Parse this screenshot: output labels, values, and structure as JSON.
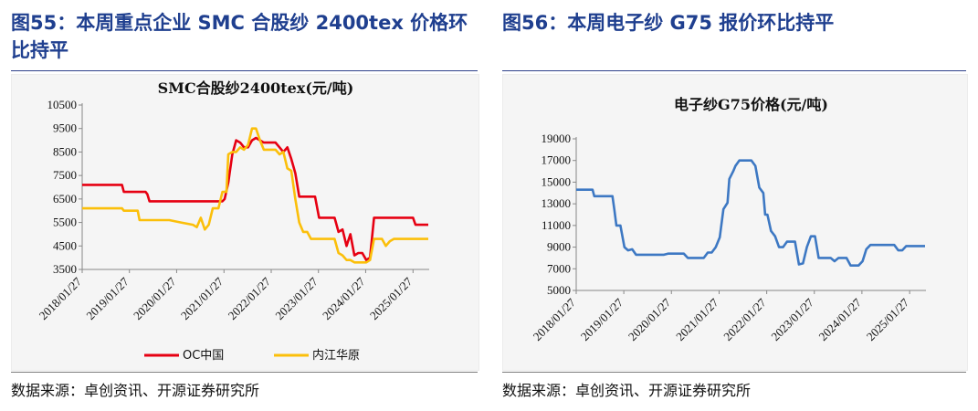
{
  "left_panel": {
    "figure_title": "图55：本周重点企业 SMC 合股纱 2400tex 价格环比持平",
    "source": "数据来源：卓创资讯、开源证券研究所"
  },
  "right_panel": {
    "figure_title": "图56：本周电子纱 G75 报价环比持平",
    "source": "数据来源：卓创资讯、开源证券研究所"
  },
  "colors": {
    "title": "#1f3f8f",
    "oc": "#e60012",
    "neijiang": "#fbbf0a",
    "g75": "#3d78c3",
    "panel_bg": "#f5f5f5"
  },
  "chart_data": [
    {
      "type": "line",
      "title": "SMC合股纱2400tex(元/吨)",
      "xlabel": "",
      "ylabel": "",
      "x_ticks": [
        "2018/01/27",
        "2019/01/27",
        "2020/01/27",
        "2021/01/27",
        "2022/01/27",
        "2023/01/27",
        "2024/01/27",
        "2025/01/27"
      ],
      "y_ticks": [
        3500,
        4500,
        5500,
        6500,
        7500,
        8500,
        9500,
        10500
      ],
      "ylim": [
        3500,
        10500
      ],
      "xlim": [
        "2018/01/27",
        "2025/06/01"
      ],
      "grid": false,
      "legend": "bottom",
      "series": [
        {
          "name": "OC中国",
          "color": "#e60012",
          "points": [
            [
              "2018/01/27",
              7100
            ],
            [
              "2018/12/01",
              7100
            ],
            [
              "2018/12/15",
              6800
            ],
            [
              "2019/06/01",
              6800
            ],
            [
              "2019/06/15",
              6700
            ],
            [
              "2019/07/01",
              6400
            ],
            [
              "2020/01/01",
              6400
            ],
            [
              "2020/12/01",
              6400
            ],
            [
              "2021/01/15",
              6400
            ],
            [
              "2021/02/01",
              6500
            ],
            [
              "2021/03/01",
              7200
            ],
            [
              "2021/04/01",
              8400
            ],
            [
              "2021/05/01",
              9000
            ],
            [
              "2021/06/01",
              8900
            ],
            [
              "2021/07/01",
              8700
            ],
            [
              "2021/08/01",
              8700
            ],
            [
              "2021/09/01",
              9000
            ],
            [
              "2021/10/01",
              9100
            ],
            [
              "2021/11/01",
              9000
            ],
            [
              "2021/12/01",
              8900
            ],
            [
              "2022/01/01",
              8900
            ],
            [
              "2022/03/01",
              8900
            ],
            [
              "2022/04/01",
              8700
            ],
            [
              "2022/05/01",
              8500
            ],
            [
              "2022/06/01",
              8700
            ],
            [
              "2022/07/01",
              8200
            ],
            [
              "2022/08/01",
              7600
            ],
            [
              "2022/09/01",
              6600
            ],
            [
              "2022/12/01",
              6600
            ],
            [
              "2023/01/01",
              6600
            ],
            [
              "2023/02/01",
              5700
            ],
            [
              "2023/06/01",
              5700
            ],
            [
              "2023/07/01",
              5100
            ],
            [
              "2023/08/01",
              5200
            ],
            [
              "2023/09/01",
              4500
            ],
            [
              "2023/10/01",
              5000
            ],
            [
              "2023/11/01",
              4100
            ],
            [
              "2023/12/01",
              4200
            ],
            [
              "2024/01/01",
              4200
            ],
            [
              "2024/02/01",
              3900
            ],
            [
              "2024/03/01",
              4000
            ],
            [
              "2024/04/01",
              5700
            ],
            [
              "2024/06/01",
              5700
            ],
            [
              "2024/12/01",
              5700
            ],
            [
              "2025/01/27",
              5700
            ],
            [
              "2025/02/15",
              5400
            ],
            [
              "2025/05/25",
              5400
            ]
          ]
        },
        {
          "name": "内江华原",
          "color": "#fbbf0a",
          "points": [
            [
              "2018/01/27",
              6100
            ],
            [
              "2018/12/01",
              6100
            ],
            [
              "2018/12/15",
              6000
            ],
            [
              "2019/04/01",
              6000
            ],
            [
              "2019/04/15",
              5600
            ],
            [
              "2019/12/01",
              5600
            ],
            [
              "2020/03/01",
              5500
            ],
            [
              "2020/06/01",
              5400
            ],
            [
              "2020/07/01",
              5300
            ],
            [
              "2020/08/01",
              5700
            ],
            [
              "2020/09/01",
              5200
            ],
            [
              "2020/10/01",
              5400
            ],
            [
              "2020/11/01",
              6100
            ],
            [
              "2020/12/15",
              6100
            ],
            [
              "2021/01/15",
              6800
            ],
            [
              "2021/02/15",
              6800
            ],
            [
              "2021/03/01",
              8400
            ],
            [
              "2021/04/01",
              8500
            ],
            [
              "2021/05/01",
              8500
            ],
            [
              "2021/06/01",
              8700
            ],
            [
              "2021/07/01",
              8600
            ],
            [
              "2021/08/01",
              8800
            ],
            [
              "2021/09/01",
              9500
            ],
            [
              "2021/10/01",
              9500
            ],
            [
              "2021/11/01",
              9000
            ],
            [
              "2021/12/01",
              8600
            ],
            [
              "2022/01/01",
              8600
            ],
            [
              "2022/03/01",
              8600
            ],
            [
              "2022/04/01",
              8400
            ],
            [
              "2022/05/01",
              8500
            ],
            [
              "2022/06/01",
              7800
            ],
            [
              "2022/07/01",
              7700
            ],
            [
              "2022/08/01",
              6500
            ],
            [
              "2022/09/01",
              5500
            ],
            [
              "2022/10/01",
              5100
            ],
            [
              "2022/11/01",
              5100
            ],
            [
              "2022/12/01",
              4800
            ],
            [
              "2023/02/01",
              4800
            ],
            [
              "2023/06/01",
              4800
            ],
            [
              "2023/07/01",
              4200
            ],
            [
              "2023/08/01",
              4100
            ],
            [
              "2023/09/01",
              3900
            ],
            [
              "2023/10/01",
              3900
            ],
            [
              "2023/11/01",
              3800
            ],
            [
              "2024/01/01",
              3800
            ],
            [
              "2024/02/01",
              3800
            ],
            [
              "2024/03/01",
              3900
            ],
            [
              "2024/04/01",
              4800
            ],
            [
              "2024/06/01",
              4800
            ],
            [
              "2024/07/01",
              4500
            ],
            [
              "2024/08/01",
              4700
            ],
            [
              "2024/09/01",
              4800
            ],
            [
              "2024/12/01",
              4800
            ],
            [
              "2025/05/25",
              4800
            ]
          ]
        }
      ]
    },
    {
      "type": "line",
      "title": "电子纱G75价格(元/吨)",
      "xlabel": "",
      "ylabel": "",
      "x_ticks": [
        "2018/01/27",
        "2019/01/27",
        "2020/01/27",
        "2021/01/27",
        "2022/01/27",
        "2023/01/27",
        "2024/01/27",
        "2025/01/27"
      ],
      "y_ticks": [
        5000,
        7000,
        9000,
        11000,
        13000,
        15000,
        17000,
        19000
      ],
      "ylim": [
        5000,
        19000
      ],
      "xlim": [
        "2018/01/27",
        "2025/06/01"
      ],
      "grid": false,
      "legend": "none",
      "series": [
        {
          "name": "",
          "color": "#3d78c3",
          "points": [
            [
              "2018/01/27",
              14300
            ],
            [
              "2018/06/01",
              14300
            ],
            [
              "2018/06/15",
              13700
            ],
            [
              "2018/11/01",
              13700
            ],
            [
              "2018/11/15",
              12500
            ],
            [
              "2018/12/01",
              11000
            ],
            [
              "2019/01/01",
              11000
            ],
            [
              "2019/02/01",
              9000
            ],
            [
              "2019/03/01",
              8700
            ],
            [
              "2019/04/01",
              8800
            ],
            [
              "2019/05/01",
              8300
            ],
            [
              "2019/09/01",
              8300
            ],
            [
              "2019/12/01",
              8300
            ],
            [
              "2020/01/01",
              8400
            ],
            [
              "2020/05/01",
              8400
            ],
            [
              "2020/06/01",
              8000
            ],
            [
              "2020/10/01",
              8000
            ],
            [
              "2020/11/01",
              8500
            ],
            [
              "2020/12/01",
              8500
            ],
            [
              "2021/01/01",
              9000
            ],
            [
              "2021/02/01",
              9900
            ],
            [
              "2021/03/01",
              12500
            ],
            [
              "2021/04/01",
              13100
            ],
            [
              "2021/04/15",
              15300
            ],
            [
              "2021/05/15",
              16000
            ],
            [
              "2021/06/01",
              16500
            ],
            [
              "2021/07/01",
              17000
            ],
            [
              "2021/08/01",
              17000
            ],
            [
              "2021/10/01",
              17000
            ],
            [
              "2021/11/01",
              16500
            ],
            [
              "2021/12/01",
              14500
            ],
            [
              "2022/01/01",
              14000
            ],
            [
              "2022/01/15",
              12000
            ],
            [
              "2022/02/01",
              12000
            ],
            [
              "2022/03/01",
              10500
            ],
            [
              "2022/04/01",
              10000
            ],
            [
              "2022/05/01",
              9000
            ],
            [
              "2022/06/01",
              9000
            ],
            [
              "2022/07/01",
              9500
            ],
            [
              "2022/08/01",
              9500
            ],
            [
              "2022/09/01",
              9500
            ],
            [
              "2022/10/01",
              7400
            ],
            [
              "2022/11/01",
              7500
            ],
            [
              "2022/12/01",
              9000
            ],
            [
              "2023/01/01",
              10000
            ],
            [
              "2023/02/01",
              10000
            ],
            [
              "2023/03/01",
              8000
            ],
            [
              "2023/06/01",
              8000
            ],
            [
              "2023/07/01",
              7700
            ],
            [
              "2023/08/01",
              8000
            ],
            [
              "2023/10/01",
              8000
            ],
            [
              "2023/11/01",
              7300
            ],
            [
              "2024/01/01",
              7300
            ],
            [
              "2024/02/01",
              7700
            ],
            [
              "2024/03/01",
              8800
            ],
            [
              "2024/04/01",
              9200
            ],
            [
              "2024/08/01",
              9200
            ],
            [
              "2024/10/01",
              9200
            ],
            [
              "2024/11/01",
              8700
            ],
            [
              "2024/12/01",
              8700
            ],
            [
              "2025/01/01",
              9100
            ],
            [
              "2025/05/25",
              9100
            ]
          ]
        }
      ]
    }
  ]
}
